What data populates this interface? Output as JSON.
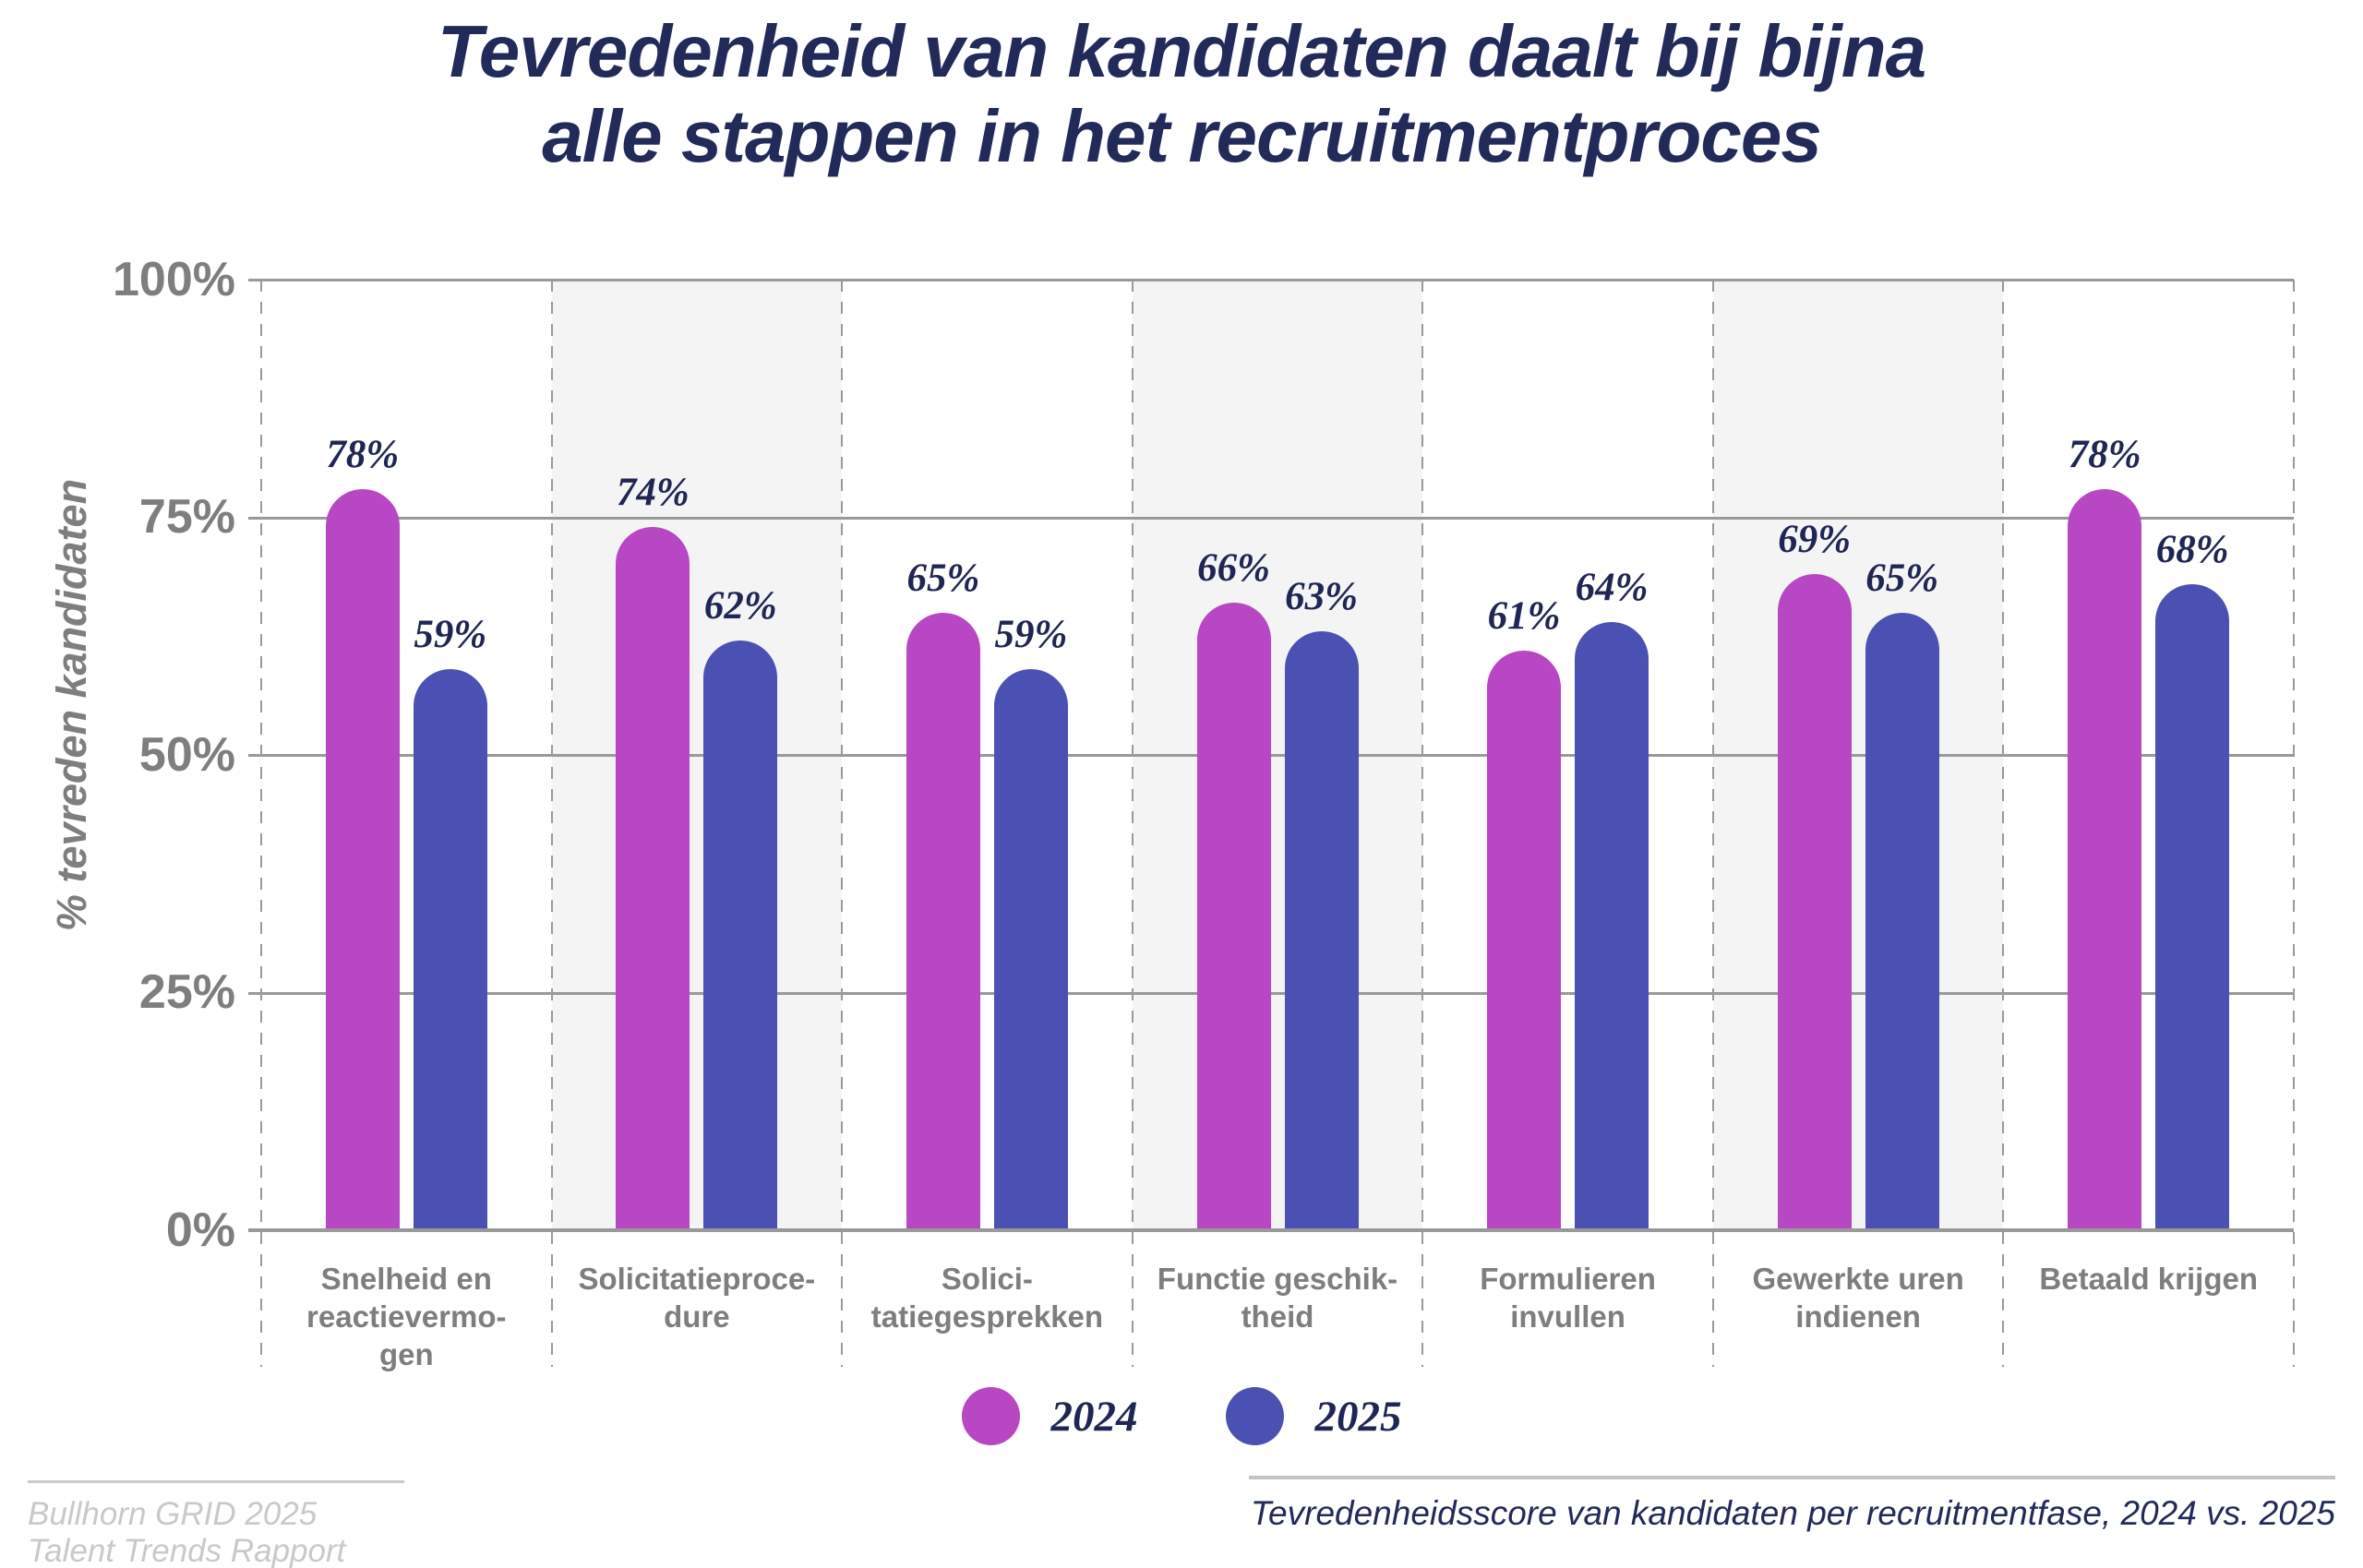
{
  "title": {
    "line1": "Tevredenheid van kandidaten daalt bij bijna",
    "line2": "alle stappen in het recruitmentproces"
  },
  "y_axis": {
    "label": "% tevreden kandidaten",
    "tick_labels": [
      "100%",
      "75%",
      "50%",
      "25%",
      "0%"
    ]
  },
  "legend": {
    "items": [
      {
        "label": "2024",
        "color": "#b847c3"
      },
      {
        "label": "2025",
        "color": "#4a51b2"
      }
    ]
  },
  "footer": {
    "source": "Bullhorn GRID 2025 Talent Trends Rapport",
    "caption": "Tevredenheidsscore van kandidaten per recruitmentfase, 2024 vs. 2025"
  },
  "colors": {
    "title_navy": "#222a5a",
    "label_navy": "#1f2654",
    "axis_gray": "#7e7e7e",
    "grid_gray": "#999999",
    "stripe_gray": "#f4f4f4",
    "series_2024": "#b847c3",
    "series_2025": "#4a51b2"
  },
  "chart_data": {
    "type": "bar",
    "title": "Tevredenheid van kandidaten daalt bij bijna alle stappen in het recruitmentproces",
    "categories": [
      "Snelheid en reactievermogen",
      "Solicitatieprocedure",
      "Solicitatiegesprekken",
      "Functie geschiktheid",
      "Formulieren invullen",
      "Gewerkte uren indienen",
      "Betaald krijgen"
    ],
    "category_display_lines": [
      [
        "Snelheid en",
        "reactievermo-",
        "gen"
      ],
      [
        "Solicitatieproce-",
        "dure"
      ],
      [
        "Solici-",
        "tatiegesprekken"
      ],
      [
        "Functie geschik-",
        "theid"
      ],
      [
        "Formulieren",
        "invullen"
      ],
      [
        "Gewerkte uren",
        "indienen"
      ],
      [
        "Betaald krijgen"
      ]
    ],
    "series": [
      {
        "name": "2024",
        "color": "#b847c3",
        "values": [
          78,
          74,
          65,
          66,
          61,
          69,
          78
        ]
      },
      {
        "name": "2025",
        "color": "#4a51b2",
        "values": [
          59,
          62,
          59,
          63,
          64,
          65,
          68
        ]
      }
    ],
    "value_label_format": "{v}%",
    "xlabel": "",
    "ylabel": "% tevreden kandidaten",
    "ylim": [
      0,
      100
    ],
    "yticks": [
      0,
      25,
      50,
      75,
      100
    ],
    "grid": true,
    "striped_category_indexes": [
      1,
      3,
      5
    ],
    "legend_position": "bottom"
  }
}
